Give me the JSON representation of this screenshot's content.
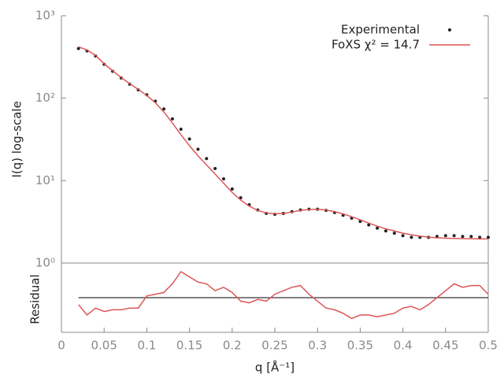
{
  "chart_data": [
    {
      "type": "line",
      "ylabel": "I(q) log-scale",
      "ylog": true,
      "x": [
        0.02,
        0.03,
        0.04,
        0.05,
        0.06,
        0.07,
        0.08,
        0.09,
        0.1,
        0.11,
        0.12,
        0.13,
        0.14,
        0.15,
        0.16,
        0.17,
        0.18,
        0.19,
        0.2,
        0.21,
        0.22,
        0.23,
        0.24,
        0.25,
        0.26,
        0.27,
        0.28,
        0.29,
        0.3,
        0.31,
        0.32,
        0.33,
        0.34,
        0.35,
        0.36,
        0.37,
        0.38,
        0.39,
        0.4,
        0.41,
        0.42,
        0.43,
        0.44,
        0.45,
        0.46,
        0.47,
        0.48,
        0.49,
        0.5
      ],
      "xlim": [
        0,
        0.5
      ],
      "ylim": [
        1,
        1000
      ],
      "yticks": [
        {
          "value": 1,
          "label": "10⁰"
        },
        {
          "value": 10,
          "label": "10¹"
        },
        {
          "value": 100,
          "label": "10²"
        },
        {
          "value": 1000,
          "label": "10³"
        }
      ],
      "legend": "upper right",
      "series": [
        {
          "name": "Experimental",
          "color": "#222222",
          "style": "points",
          "values": [
            400,
            375,
            325,
            258,
            212,
            176,
            148,
            126,
            110,
            92,
            74,
            56,
            42,
            32,
            24,
            18.5,
            14,
            10.5,
            7.9,
            6.2,
            5.1,
            4.4,
            4.0,
            3.9,
            4.0,
            4.2,
            4.4,
            4.5,
            4.5,
            4.35,
            4.1,
            3.8,
            3.5,
            3.2,
            2.9,
            2.65,
            2.45,
            2.3,
            2.15,
            2.05,
            2.05,
            2.05,
            2.1,
            2.15,
            2.15,
            2.1,
            2.1,
            2.05,
            2.05
          ]
        },
        {
          "name": "FoXS χ² = 14.7",
          "color": "#dd5555",
          "style": "line",
          "values": [
            420,
            385,
            330,
            262,
            215,
            178,
            150,
            128,
            108,
            88,
            68,
            50,
            36,
            26.5,
            20,
            15.5,
            12,
            9.3,
            7.2,
            5.8,
            4.9,
            4.35,
            4.05,
            3.95,
            4.0,
            4.15,
            4.35,
            4.45,
            4.5,
            4.4,
            4.2,
            3.95,
            3.65,
            3.35,
            3.05,
            2.8,
            2.6,
            2.45,
            2.3,
            2.2,
            2.12,
            2.06,
            2.02,
            2.0,
            1.99,
            1.98,
            1.97,
            1.96,
            1.96
          ]
        }
      ]
    },
    {
      "type": "line",
      "ylabel": "Residual",
      "xlabel": "q [Å⁻¹]",
      "x": [
        0.02,
        0.03,
        0.04,
        0.05,
        0.06,
        0.07,
        0.08,
        0.09,
        0.1,
        0.11,
        0.12,
        0.13,
        0.14,
        0.15,
        0.16,
        0.17,
        0.18,
        0.19,
        0.2,
        0.21,
        0.22,
        0.23,
        0.24,
        0.25,
        0.26,
        0.27,
        0.28,
        0.29,
        0.3,
        0.31,
        0.32,
        0.33,
        0.34,
        0.35,
        0.36,
        0.37,
        0.38,
        0.39,
        0.4,
        0.41,
        0.42,
        0.43,
        0.44,
        0.45,
        0.46,
        0.47,
        0.48,
        0.49,
        0.5
      ],
      "xlim": [
        0,
        0.5
      ],
      "ylim": [
        -1,
        1
      ],
      "xticks": [
        0,
        0.05,
        0.1,
        0.15,
        0.2,
        0.25,
        0.3,
        0.35,
        0.4,
        0.45,
        0.5
      ],
      "series": [
        {
          "color": "#dd5555",
          "style": "line",
          "values": [
            -0.2,
            -0.5,
            -0.3,
            -0.4,
            -0.35,
            -0.35,
            -0.3,
            -0.3,
            0.05,
            0.1,
            0.15,
            0.4,
            0.75,
            0.6,
            0.45,
            0.4,
            0.2,
            0.3,
            0.15,
            -0.1,
            -0.15,
            -0.05,
            -0.1,
            0.1,
            0.2,
            0.3,
            0.35,
            0.1,
            -0.1,
            -0.3,
            -0.35,
            -0.45,
            -0.6,
            -0.5,
            -0.5,
            -0.55,
            -0.5,
            -0.45,
            -0.3,
            -0.25,
            -0.35,
            -0.2,
            0.0,
            0.2,
            0.4,
            0.3,
            0.35,
            0.35,
            0.1
          ]
        }
      ]
    }
  ]
}
